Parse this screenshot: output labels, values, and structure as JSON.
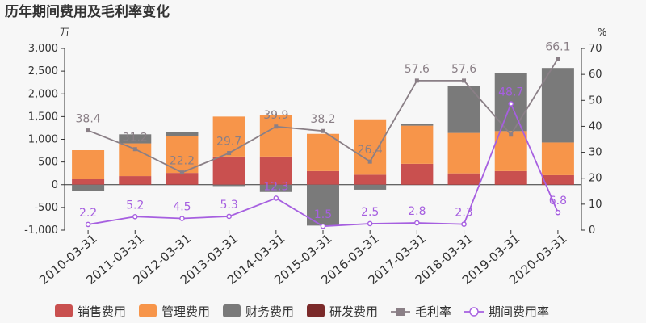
{
  "chart_data": {
    "type": "bar",
    "title": "历年期间费用及毛利率变化",
    "left_unit": "万",
    "right_unit": "%",
    "categories": [
      "2010-03-31",
      "2011-03-31",
      "2012-03-31",
      "2013-03-31",
      "2014-03-31",
      "2015-03-31",
      "2016-03-31",
      "2017-03-31",
      "2018-03-31",
      "2019-03-31",
      "2020-03-31"
    ],
    "ylim_left": [
      -1000,
      3000
    ],
    "yticks_left": [
      "-1,000",
      "-500",
      "0",
      "500",
      "1,000",
      "1,500",
      "2,000",
      "2,500",
      "3,000"
    ],
    "ylim_right": [
      0,
      70
    ],
    "yticks_right": [
      "0",
      "10",
      "20",
      "30",
      "40",
      "50",
      "60",
      "70"
    ],
    "bar_series": [
      {
        "name": "销售费用",
        "color": "#c9504f",
        "values": [
          120,
          190,
          260,
          620,
          620,
          300,
          220,
          460,
          250,
          300,
          210
        ]
      },
      {
        "name": "管理费用",
        "color": "#f7954a",
        "values": [
          640,
          720,
          820,
          880,
          920,
          820,
          1220,
          840,
          890,
          880,
          720
        ]
      },
      {
        "name": "财务费用",
        "color": "#7a7a7a",
        "values": [
          -130,
          200,
          80,
          -30,
          -160,
          -900,
          -110,
          30,
          1030,
          1280,
          1640
        ]
      },
      {
        "name": "研发费用",
        "color": "#7b2a2a",
        "values": [
          0,
          0,
          0,
          0,
          0,
          0,
          0,
          0,
          0,
          0,
          0
        ]
      }
    ],
    "line_series": [
      {
        "name": "毛利率",
        "color": "#8a7f86",
        "values": [
          38.4,
          31.2,
          22.2,
          29.7,
          39.9,
          38.2,
          26.4,
          57.6,
          57.6,
          36.8,
          66.1
        ],
        "labels": [
          "38.4",
          "31.2",
          "22.2",
          "29.7",
          "39.9",
          "38.2",
          "26.4",
          "57.6",
          "57.6",
          "",
          "66.1"
        ]
      },
      {
        "name": "期间费用率",
        "color": "#a65fe0",
        "values": [
          2.2,
          5.2,
          4.5,
          5.3,
          12.3,
          1.5,
          2.5,
          2.8,
          2.3,
          48.7,
          6.8
        ],
        "labels": [
          "2.2",
          "5.2",
          "4.5",
          "5.3",
          "12.3",
          "1.5",
          "2.5",
          "2.8",
          "2.3",
          "48.7",
          "6.8"
        ]
      }
    ],
    "grid": false,
    "legend_placement": "bottom"
  }
}
